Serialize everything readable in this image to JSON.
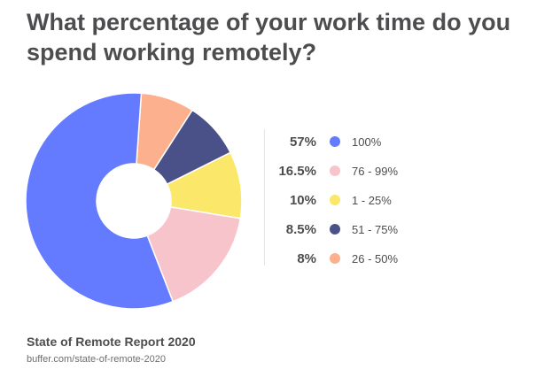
{
  "chart_data": {
    "type": "pie",
    "title": "What percentage of your work time do you spend working remotely?",
    "slices": [
      {
        "label": "100%",
        "value": 57,
        "value_label": "57%",
        "color": "#647aff"
      },
      {
        "label": "76 - 99%",
        "value": 16.5,
        "value_label": "16.5%",
        "color": "#f7c4cc"
      },
      {
        "label": "1 - 25%",
        "value": 10,
        "value_label": "10%",
        "color": "#fbe76a"
      },
      {
        "label": "51 - 75%",
        "value": 8.5,
        "value_label": "8.5%",
        "color": "#4a5189"
      },
      {
        "label": "26 - 50%",
        "value": 8,
        "value_label": "8%",
        "color": "#fdb08d"
      }
    ]
  },
  "source": {
    "title": "State of Remote Report 2020",
    "url": "buffer.com/state-of-remote-2020"
  }
}
